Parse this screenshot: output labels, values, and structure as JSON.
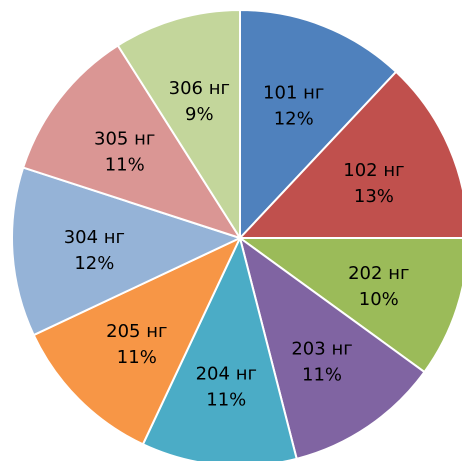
{
  "chart_data": {
    "type": "pie",
    "title": "",
    "start_angle_deg": 0,
    "direction": "clockwise",
    "slices": [
      {
        "name": "101 нг",
        "percent_label": "12%",
        "value": 12,
        "color": "#4F81BD"
      },
      {
        "name": "102 нг",
        "percent_label": "13%",
        "value": 13,
        "color": "#C0504D"
      },
      {
        "name": "202 нг",
        "percent_label": "10%",
        "value": 10,
        "color": "#9BBB59"
      },
      {
        "name": "203 нг",
        "percent_label": "11%",
        "value": 11,
        "color": "#8064A2"
      },
      {
        "name": "204 нг",
        "percent_label": "11%",
        "value": 11,
        "color": "#4BACC6"
      },
      {
        "name": "205 нг",
        "percent_label": "11%",
        "value": 11,
        "color": "#F79646"
      },
      {
        "name": "304 нг",
        "percent_label": "12%",
        "value": 12,
        "color": "#95B3D7"
      },
      {
        "name": "305 нг",
        "percent_label": "11%",
        "value": 11,
        "color": "#DA9694"
      },
      {
        "name": "306 нг",
        "percent_label": "9%",
        "value": 9,
        "color": "#C3D69B"
      }
    ],
    "slice_border_color": "#FFFFFF"
  }
}
